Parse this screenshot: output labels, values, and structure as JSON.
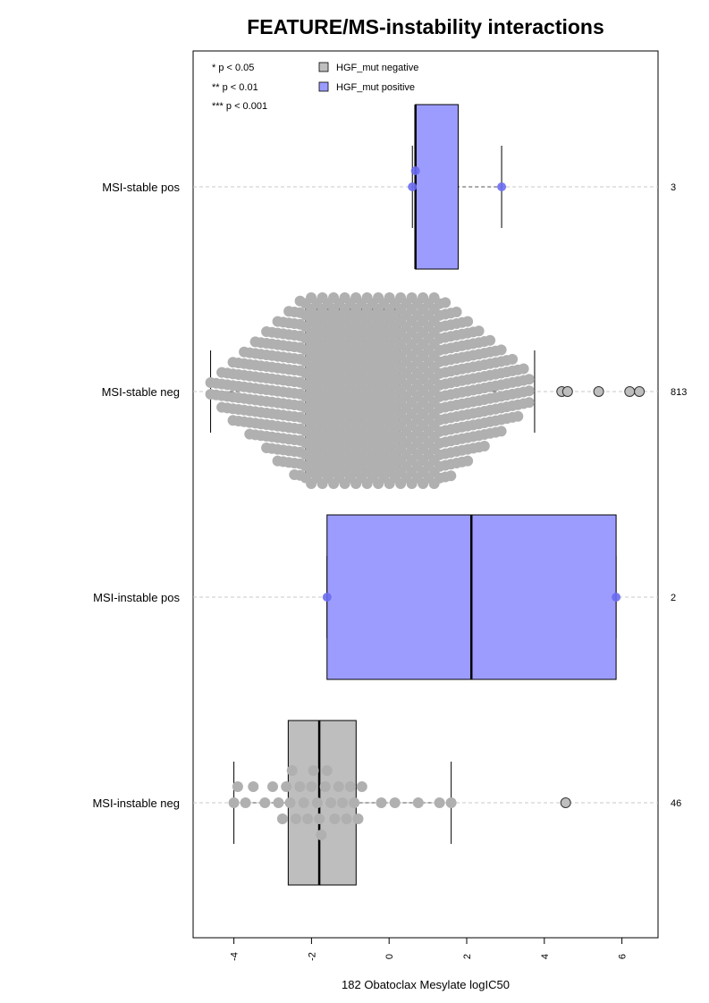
{
  "chart_data": {
    "type": "boxplot",
    "title": "FEATURE/MS-instability interactions",
    "xlabel": "182 Obatoclax Mesylate logIC50",
    "xlim": [
      -5.0,
      7.0
    ],
    "x_ticks": [
      -4,
      -2,
      0,
      2,
      4,
      6
    ],
    "x_tick_labels": [
      "-4",
      "-2",
      "0",
      "2",
      "4",
      "6"
    ],
    "significance_legend": [
      "* p < 0.05",
      "** p < 0.01",
      "*** p < 0.001"
    ],
    "legend": [
      {
        "label": "HGF_mut negative",
        "color": "#bebebe"
      },
      {
        "label": "HGF_mut positive",
        "color": "#9c9cff"
      }
    ],
    "colors": {
      "negative_box": "#bebebe",
      "positive_box": "#9c9cff",
      "negative_point": "#b0b0b0",
      "positive_point": "#6b6bf2"
    },
    "groups": [
      {
        "label": "MSI-stable pos",
        "count": "3",
        "mutation": "positive",
        "q1": 0.68,
        "median": 0.68,
        "q3": 1.78,
        "whisker_low": 0.6,
        "whisker_high": 2.9,
        "points": [
          0.6,
          0.68,
          2.9
        ],
        "outliers": []
      },
      {
        "label": "MSI-stable neg",
        "count": "813",
        "mutation": "negative",
        "q1": -2.15,
        "median": -0.95,
        "q3": 0.28,
        "whisker_low": -4.6,
        "whisker_high": 3.75,
        "points": [],
        "outliers": [
          4.45,
          4.6,
          5.4,
          6.2,
          6.45
        ]
      },
      {
        "label": "MSI-instable pos",
        "count": "2",
        "mutation": "positive",
        "q1": -1.6,
        "median": 2.12,
        "q3": 5.85,
        "whisker_low": -1.6,
        "whisker_high": 5.85,
        "points": [
          -1.6,
          5.85
        ],
        "outliers": []
      },
      {
        "label": "MSI-instable neg",
        "count": "46",
        "mutation": "negative",
        "q1": -2.6,
        "median": -1.8,
        "q3": -0.85,
        "whisker_low": -4.0,
        "whisker_high": 1.6,
        "points": [
          -4.0,
          -3.9,
          -3.7,
          -3.5,
          -3.2,
          -3.0,
          -2.85,
          -2.75,
          -2.65,
          -2.55,
          -2.5,
          -2.4,
          -2.3,
          -2.2,
          -2.1,
          -2.0,
          -1.95,
          -1.85,
          -1.8,
          -1.75,
          -1.65,
          -1.6,
          -1.5,
          -1.4,
          -1.3,
          -1.2,
          -1.1,
          -1.0,
          -0.9,
          -0.8,
          -0.7,
          -0.2,
          0.15,
          0.75,
          1.3,
          1.6
        ],
        "outliers": [
          4.55
        ]
      }
    ]
  }
}
